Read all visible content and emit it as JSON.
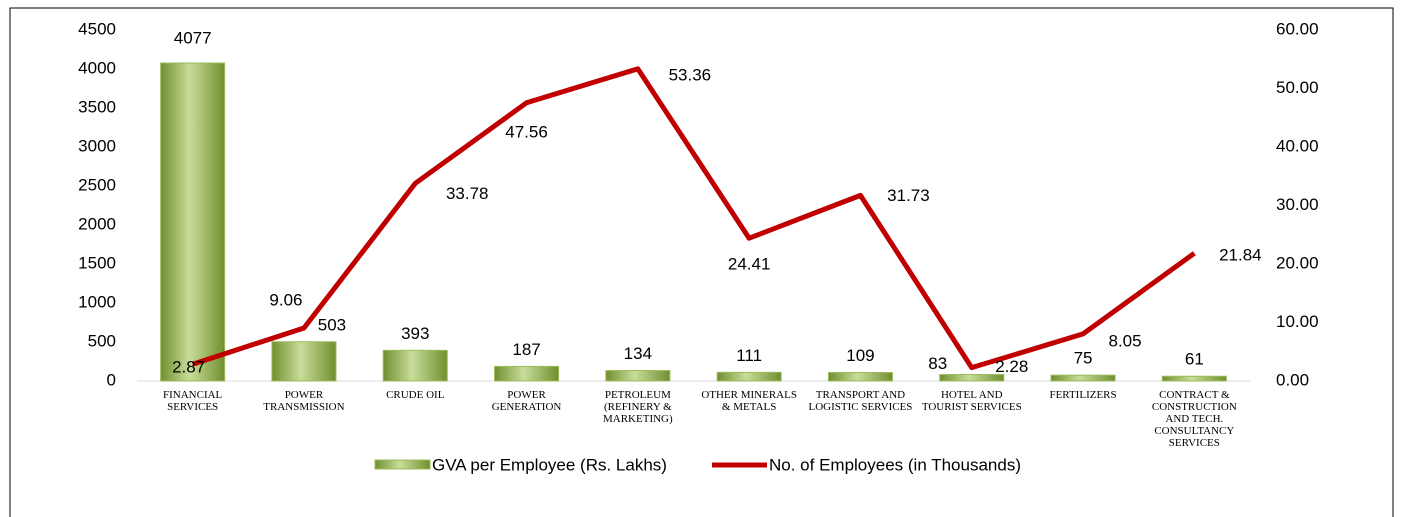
{
  "chart_data": {
    "type": "bar_line",
    "categories": [
      "FINANCIAL SERVICES",
      "POWER TRANSMISSION",
      "CRUDE OIL",
      "POWER GENERATION",
      "PETROLEUM (REFINERY & MARKETING)",
      "OTHER MINERALS & METALS",
      "TRANSPORT AND LOGISTIC SERVICES",
      "HOTEL AND TOURIST SERVICES",
      "FERTILIZERS",
      "CONTRACT & CONSTRUCTION AND TECH. CONSULTANCY SERVICES"
    ],
    "series": [
      {
        "name": "GVA per Employee (Rs. Lakhs)",
        "type": "bar",
        "color": "#9bbb59",
        "values": [
          4077,
          503,
          393,
          187,
          134,
          111,
          109,
          83,
          75,
          61
        ]
      },
      {
        "name": "No. of Employees (in Thousands)",
        "type": "line",
        "axis": "y2",
        "color": "#c00000",
        "values": [
          2.87,
          9.06,
          33.78,
          47.56,
          53.36,
          24.41,
          31.73,
          2.28,
          8.05,
          21.84
        ]
      }
    ],
    "ylim": [
      0,
      4500
    ],
    "yticks": [
      0,
      500,
      1000,
      1500,
      2000,
      2500,
      3000,
      3500,
      4000,
      4500
    ],
    "y2lim": [
      0,
      60
    ],
    "y2ticks": [
      {
        "value": 0,
        "label": "0.00"
      },
      {
        "value": 10,
        "label": "10.00"
      },
      {
        "value": 20,
        "label": "20.00"
      },
      {
        "value": 30,
        "label": "30.00"
      },
      {
        "value": 40,
        "label": "40.00"
      },
      {
        "value": 50,
        "label": "50.00"
      },
      {
        "value": 60,
        "label": "60.00"
      }
    ],
    "legend": "bottom"
  }
}
